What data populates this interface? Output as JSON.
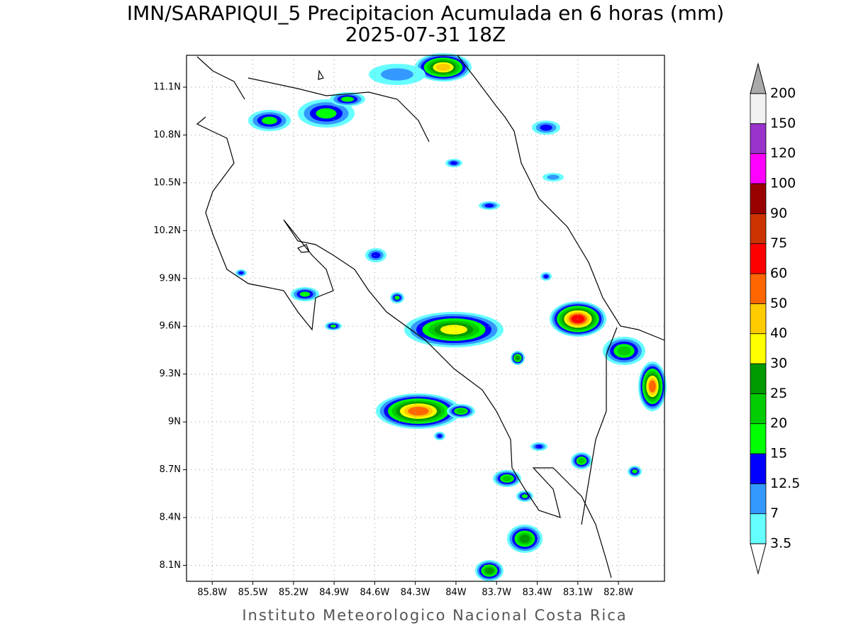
{
  "title": "IMN/SARAPIQUI_5 Precipitacion Acumulada en 6 horas (mm)",
  "subtitle": "2025-07-31 18Z",
  "footer": "Instituto Meteorologico Nacional Costa Rica",
  "map": {
    "xlim": [
      -85.99,
      -82.46
    ],
    "ylim": [
      8.0,
      11.3
    ],
    "xticks": [
      {
        "value": -85.8,
        "label": "85.8W"
      },
      {
        "value": -85.5,
        "label": "85.5W"
      },
      {
        "value": -85.2,
        "label": "85.2W"
      },
      {
        "value": -84.9,
        "label": "84.9W"
      },
      {
        "value": -84.6,
        "label": "84.6W"
      },
      {
        "value": -84.3,
        "label": "84.3W"
      },
      {
        "value": -84.0,
        "label": "84W"
      },
      {
        "value": -83.7,
        "label": "83.7W"
      },
      {
        "value": -83.4,
        "label": "83.4W"
      },
      {
        "value": -83.1,
        "label": "83.1W"
      },
      {
        "value": -82.8,
        "label": "82.8W"
      }
    ],
    "yticks": [
      {
        "value": 8.1,
        "label": "8.1N"
      },
      {
        "value": 8.4,
        "label": "8.4N"
      },
      {
        "value": 8.7,
        "label": "8.7N"
      },
      {
        "value": 9.0,
        "label": "9N"
      },
      {
        "value": 9.3,
        "label": "9.3N"
      },
      {
        "value": 9.6,
        "label": "9.6N"
      },
      {
        "value": 9.9,
        "label": "9.9N"
      },
      {
        "value": 10.2,
        "label": "10.2N"
      },
      {
        "value": 10.5,
        "label": "10.5N"
      },
      {
        "value": 10.8,
        "label": "10.8N"
      },
      {
        "value": 11.1,
        "label": "11.1N"
      }
    ],
    "grid": true
  },
  "colorbar": {
    "levels": [
      3.5,
      7,
      12.5,
      15,
      20,
      25,
      30,
      40,
      50,
      60,
      75,
      90,
      100,
      120,
      150,
      200
    ],
    "colors": [
      "#66ffff",
      "#3399ff",
      "#0000ff",
      "#00ff00",
      "#00cc00",
      "#009900",
      "#ffff00",
      "#ffcc00",
      "#ff6600",
      "#ff0000",
      "#cc3300",
      "#990000",
      "#ff00ff",
      "#9933cc",
      "#f2f2f2"
    ],
    "under_color": "#ffffff",
    "over_color": "#aaaaaa"
  }
}
